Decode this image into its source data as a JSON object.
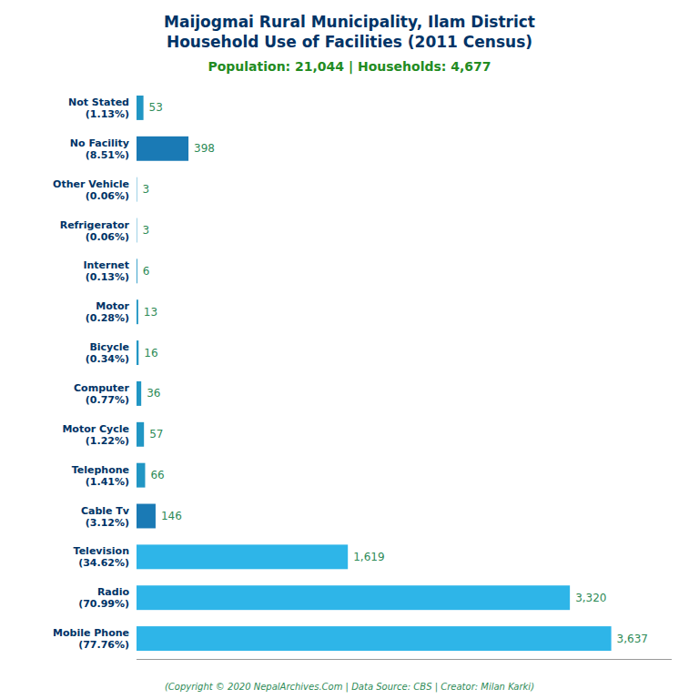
{
  "chart_data": {
    "type": "bar",
    "orientation": "horizontal",
    "title": "Maijogmai Rural Municipality, Ilam District\nHousehold Use of Facilities (2011 Census)",
    "subtitle": "Population: 21,044 | Households: 4,677",
    "annotations": [
      "(Copyright © 2020 NepalArchives.Com | Data Source: CBS | Creator: Milan Karki)"
    ],
    "categories": [
      "Not Stated\n(1.13%)",
      "No Facility\n(8.51%)",
      "Other Vehicle\n(0.06%)",
      "Refrigerator\n(0.06%)",
      "Internet\n(0.13%)",
      "Motor\n(0.28%)",
      "Bicycle\n(0.34%)",
      "Computer\n(0.77%)",
      "Motor Cycle\n(1.22%)",
      "Telephone\n(1.41%)",
      "Cable Tv\n(3.12%)",
      "Television\n(34.62%)",
      "Radio\n(70.99%)",
      "Mobile Phone\n(77.76%)"
    ],
    "values": [
      53,
      398,
      3,
      3,
      6,
      13,
      16,
      36,
      57,
      66,
      146,
      1619,
      3320,
      3637
    ],
    "value_labels": [
      "53",
      "398",
      "3",
      "3",
      "6",
      "13",
      "16",
      "36",
      "57",
      "66",
      "146",
      "1,619",
      "3,320",
      "3,637"
    ],
    "colors": [
      "#2196c4",
      "#1a7ab5",
      "#2196c4",
      "#2196c4",
      "#2196c4",
      "#2196c4",
      "#2196c4",
      "#2196c4",
      "#2196c4",
      "#2196c4",
      "#1a7ab5",
      "#2eb5e8",
      "#2eb5e8",
      "#2eb5e8"
    ],
    "xlim": [
      0,
      4100
    ],
    "xticks": [],
    "tick_labels": "y",
    "data_labels": true,
    "grid": false
  }
}
